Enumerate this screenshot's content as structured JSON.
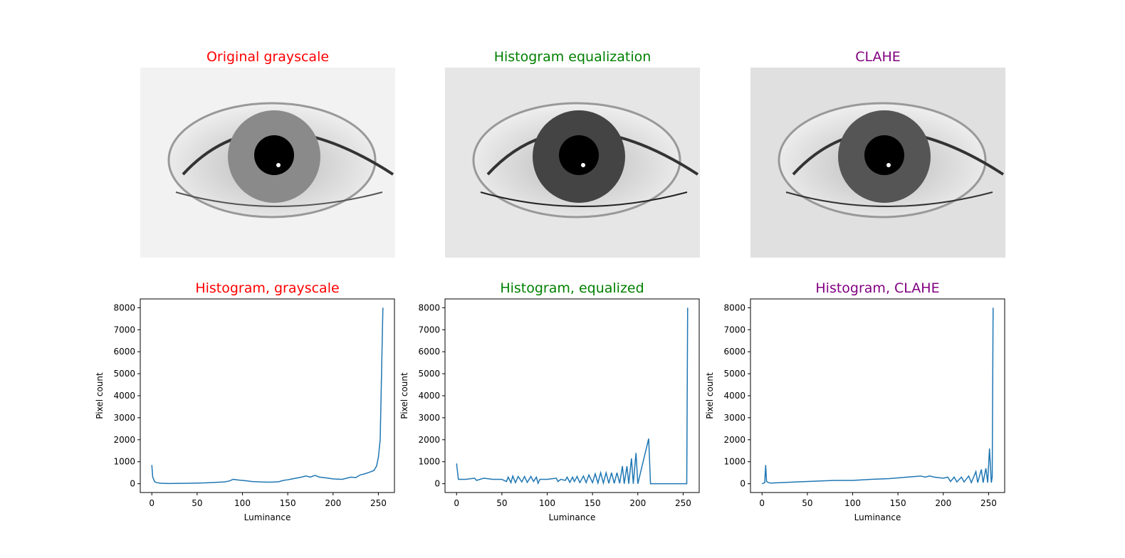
{
  "chart_data": [
    {
      "type": "image",
      "title": "Original grayscale",
      "title_color": "red"
    },
    {
      "type": "image",
      "title": "Histogram equalization",
      "title_color": "green"
    },
    {
      "type": "image",
      "title": "CLAHE",
      "title_color": "purple"
    },
    {
      "type": "line",
      "title": "Histogram, grayscale",
      "title_color": "red",
      "xlabel": "Luminance",
      "ylabel": "Pixel count",
      "color": "#1f77b4",
      "xlim": [
        -12.75,
        267.75
      ],
      "ylim": [
        -400,
        8400
      ],
      "xticks": [
        0,
        50,
        100,
        150,
        200,
        250
      ],
      "yticks": [
        0,
        1000,
        2000,
        3000,
        4000,
        5000,
        6000,
        7000,
        8000
      ],
      "x": [
        0,
        1,
        3,
        5,
        10,
        20,
        30,
        40,
        50,
        60,
        70,
        80,
        85,
        90,
        95,
        100,
        105,
        110,
        120,
        130,
        140,
        145,
        150,
        155,
        160,
        165,
        170,
        175,
        180,
        185,
        190,
        200,
        210,
        215,
        220,
        225,
        230,
        235,
        240,
        245,
        248,
        250,
        252,
        253,
        255
      ],
      "values": [
        850,
        300,
        100,
        50,
        20,
        10,
        15,
        20,
        30,
        40,
        60,
        80,
        120,
        200,
        170,
        150,
        130,
        100,
        80,
        70,
        90,
        150,
        180,
        220,
        260,
        300,
        350,
        300,
        380,
        300,
        280,
        220,
        200,
        250,
        300,
        280,
        400,
        450,
        520,
        600,
        800,
        1200,
        2000,
        4000,
        8000
      ]
    },
    {
      "type": "line",
      "title": "Histogram, equalized",
      "title_color": "green",
      "xlabel": "Luminance",
      "ylabel": "Pixel count",
      "color": "#1f77b4",
      "xlim": [
        -12.75,
        267.75
      ],
      "ylim": [
        -400,
        8400
      ],
      "xticks": [
        0,
        50,
        100,
        150,
        200,
        250
      ],
      "yticks": [
        0,
        1000,
        2000,
        3000,
        4000,
        5000,
        6000,
        7000,
        8000
      ],
      "x": [
        0,
        2,
        10,
        20,
        22,
        30,
        40,
        50,
        55,
        57,
        60,
        62,
        65,
        68,
        72,
        75,
        78,
        82,
        85,
        88,
        90,
        92,
        100,
        110,
        112,
        115,
        120,
        122,
        125,
        128,
        130,
        133,
        136,
        140,
        143,
        146,
        150,
        153,
        156,
        159,
        162,
        165,
        168,
        171,
        174,
        177,
        180,
        183,
        185,
        188,
        190,
        193,
        195,
        198,
        200,
        212,
        214,
        254,
        255
      ],
      "values": [
        920,
        200,
        200,
        250,
        150,
        250,
        200,
        200,
        100,
        300,
        50,
        350,
        50,
        330,
        80,
        330,
        60,
        330,
        100,
        300,
        20,
        200,
        200,
        250,
        100,
        200,
        150,
        300,
        60,
        300,
        100,
        330,
        50,
        350,
        50,
        400,
        50,
        450,
        30,
        500,
        30,
        500,
        20,
        500,
        20,
        500,
        20,
        800,
        0,
        800,
        0,
        1150,
        0,
        1400,
        0,
        2050,
        0,
        0,
        8000
      ]
    },
    {
      "type": "line",
      "title": "Histogram, CLAHE",
      "title_color": "purple",
      "xlabel": "Luminance",
      "ylabel": "Pixel count",
      "color": "#1f77b4",
      "xlim": [
        -12.75,
        267.75
      ],
      "ylim": [
        -400,
        8400
      ],
      "xticks": [
        0,
        50,
        100,
        150,
        200,
        250
      ],
      "yticks": [
        0,
        1000,
        2000,
        3000,
        4000,
        5000,
        6000,
        7000,
        8000
      ],
      "x": [
        0,
        3,
        4,
        5,
        7,
        10,
        20,
        50,
        80,
        100,
        120,
        140,
        160,
        175,
        180,
        185,
        190,
        200,
        205,
        208,
        212,
        215,
        220,
        223,
        228,
        231,
        236,
        238,
        242,
        244,
        247,
        249,
        251,
        253,
        254,
        255
      ],
      "values": [
        0,
        50,
        850,
        100,
        50,
        30,
        50,
        100,
        150,
        150,
        200,
        230,
        300,
        350,
        300,
        350,
        300,
        250,
        300,
        100,
        300,
        80,
        300,
        80,
        350,
        50,
        550,
        50,
        650,
        50,
        700,
        50,
        1600,
        50,
        300,
        8000
      ]
    }
  ]
}
